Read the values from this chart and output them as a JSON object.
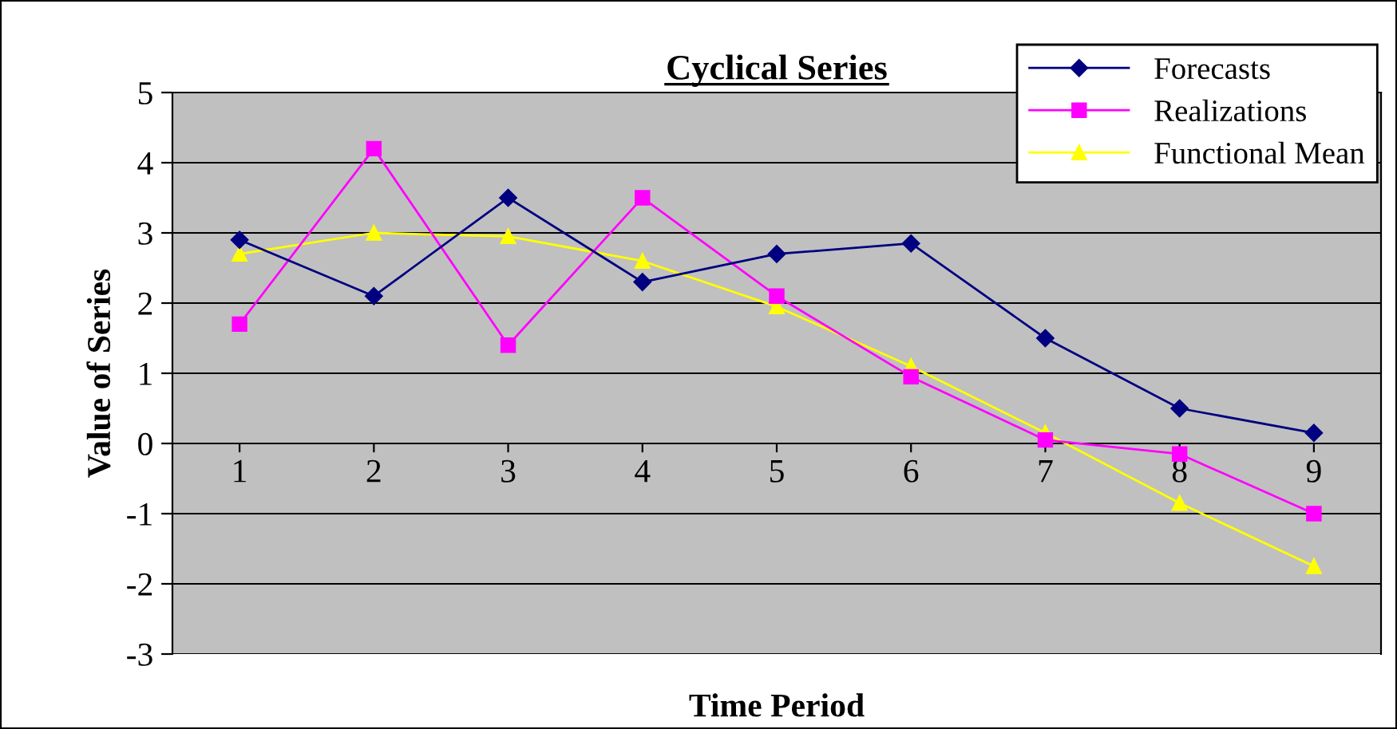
{
  "chart_data": {
    "type": "line",
    "title": "Cyclical Series",
    "xlabel": "Time Period",
    "ylabel": "Value of Series",
    "categories": [
      "1",
      "2",
      "3",
      "4",
      "5",
      "6",
      "7",
      "8",
      "9"
    ],
    "series": [
      {
        "name": "Forecasts",
        "color": "#000080",
        "marker": "diamond",
        "values": [
          2.9,
          2.1,
          3.5,
          2.3,
          2.7,
          2.85,
          1.5,
          0.5,
          0.15
        ]
      },
      {
        "name": "Realizations",
        "color": "#ff00ff",
        "marker": "square",
        "values": [
          1.7,
          4.2,
          1.4,
          3.5,
          2.1,
          0.95,
          0.05,
          -0.15,
          -1.0
        ]
      },
      {
        "name": "Functional Mean",
        "color": "#ffff00",
        "marker": "triangle",
        "values": [
          2.7,
          3.0,
          2.95,
          2.6,
          1.95,
          1.1,
          0.15,
          -0.85,
          -1.75
        ]
      }
    ],
    "ylim": [
      -3,
      5
    ],
    "yticks": [
      -3,
      -2,
      -1,
      0,
      1,
      2,
      3,
      4,
      5
    ],
    "grid": "y",
    "legend": "top right",
    "line_style": "solid"
  }
}
